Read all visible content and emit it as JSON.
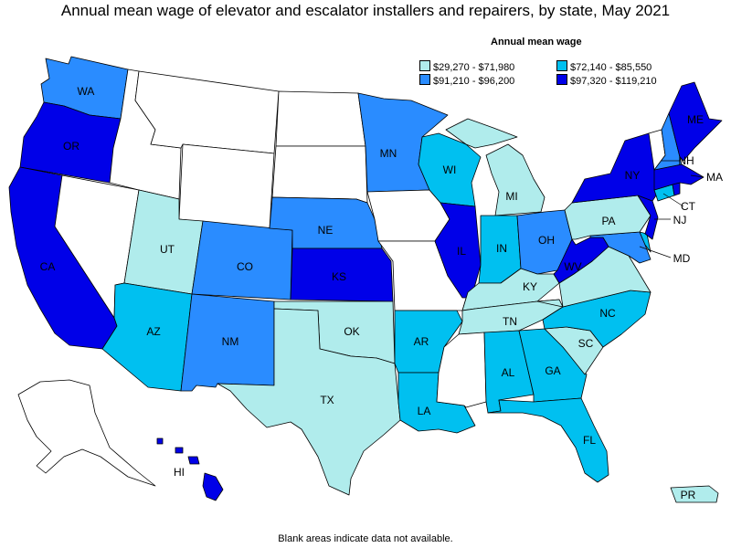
{
  "title": "Annual mean wage of elevator and escalator installers and repairers, by state, May 2021",
  "legend": {
    "title": "Annual mean wage",
    "items": [
      {
        "label": "$29,270 - $71,980",
        "color": "#b0ecec"
      },
      {
        "label": "$72,140 - $85,550",
        "color": "#00c0f0"
      },
      {
        "label": "$91,210 - $96,200",
        "color": "#2a8cff"
      },
      {
        "label": "$97,320 - $119,210",
        "color": "#0000e8"
      }
    ]
  },
  "footnote": "Blank areas indicate data not available.",
  "states": {
    "WA": {
      "label": "WA",
      "tier": 2
    },
    "OR": {
      "label": "OR",
      "tier": 3
    },
    "CA": {
      "label": "CA",
      "tier": 3
    },
    "NV": {
      "label": "",
      "tier": -1
    },
    "ID": {
      "label": "",
      "tier": -1
    },
    "MT": {
      "label": "",
      "tier": -1
    },
    "WY": {
      "label": "",
      "tier": -1
    },
    "UT": {
      "label": "UT",
      "tier": 0
    },
    "AZ": {
      "label": "AZ",
      "tier": 1
    },
    "CO": {
      "label": "CO",
      "tier": 2
    },
    "NM": {
      "label": "NM",
      "tier": 2
    },
    "ND": {
      "label": "",
      "tier": -1
    },
    "SD": {
      "label": "",
      "tier": -1
    },
    "NE": {
      "label": "NE",
      "tier": 2
    },
    "KS": {
      "label": "KS",
      "tier": 3
    },
    "OK": {
      "label": "OK",
      "tier": 0
    },
    "TX": {
      "label": "TX",
      "tier": 0
    },
    "MN": {
      "label": "MN",
      "tier": 2
    },
    "IA": {
      "label": "",
      "tier": -1
    },
    "MO": {
      "label": "",
      "tier": -1
    },
    "AR": {
      "label": "AR",
      "tier": 1
    },
    "LA": {
      "label": "LA",
      "tier": 1
    },
    "WI": {
      "label": "WI",
      "tier": 1
    },
    "IL": {
      "label": "IL",
      "tier": 3
    },
    "MI": {
      "label": "MI",
      "tier": 0
    },
    "IN": {
      "label": "IN",
      "tier": 1
    },
    "OH": {
      "label": "OH",
      "tier": 2
    },
    "KY": {
      "label": "KY",
      "tier": 0
    },
    "TN": {
      "label": "TN",
      "tier": 0
    },
    "MS": {
      "label": "",
      "tier": -1
    },
    "AL": {
      "label": "AL",
      "tier": 1
    },
    "GA": {
      "label": "GA",
      "tier": 1
    },
    "FL": {
      "label": "FL",
      "tier": 1
    },
    "SC": {
      "label": "SC",
      "tier": 0
    },
    "NC": {
      "label": "NC",
      "tier": 1
    },
    "VA": {
      "label": "",
      "tier": 0
    },
    "WV": {
      "label": "WV",
      "tier": 3
    },
    "MD": {
      "label": "MD",
      "tier": 2
    },
    "DE": {
      "label": "",
      "tier": 1
    },
    "PA": {
      "label": "PA",
      "tier": 0
    },
    "NJ": {
      "label": "NJ",
      "tier": 3
    },
    "NY": {
      "label": "NY",
      "tier": 3
    },
    "CT": {
      "label": "CT",
      "tier": 1
    },
    "RI": {
      "label": "",
      "tier": 3
    },
    "MA": {
      "label": "MA",
      "tier": 3
    },
    "VT": {
      "label": "",
      "tier": -1
    },
    "NH": {
      "label": "NH",
      "tier": 2
    },
    "ME": {
      "label": "ME",
      "tier": 3
    },
    "AK": {
      "label": "",
      "tier": -1
    },
    "HI": {
      "label": "HI",
      "tier": 3
    },
    "PR": {
      "label": "PR",
      "tier": 0
    }
  }
}
